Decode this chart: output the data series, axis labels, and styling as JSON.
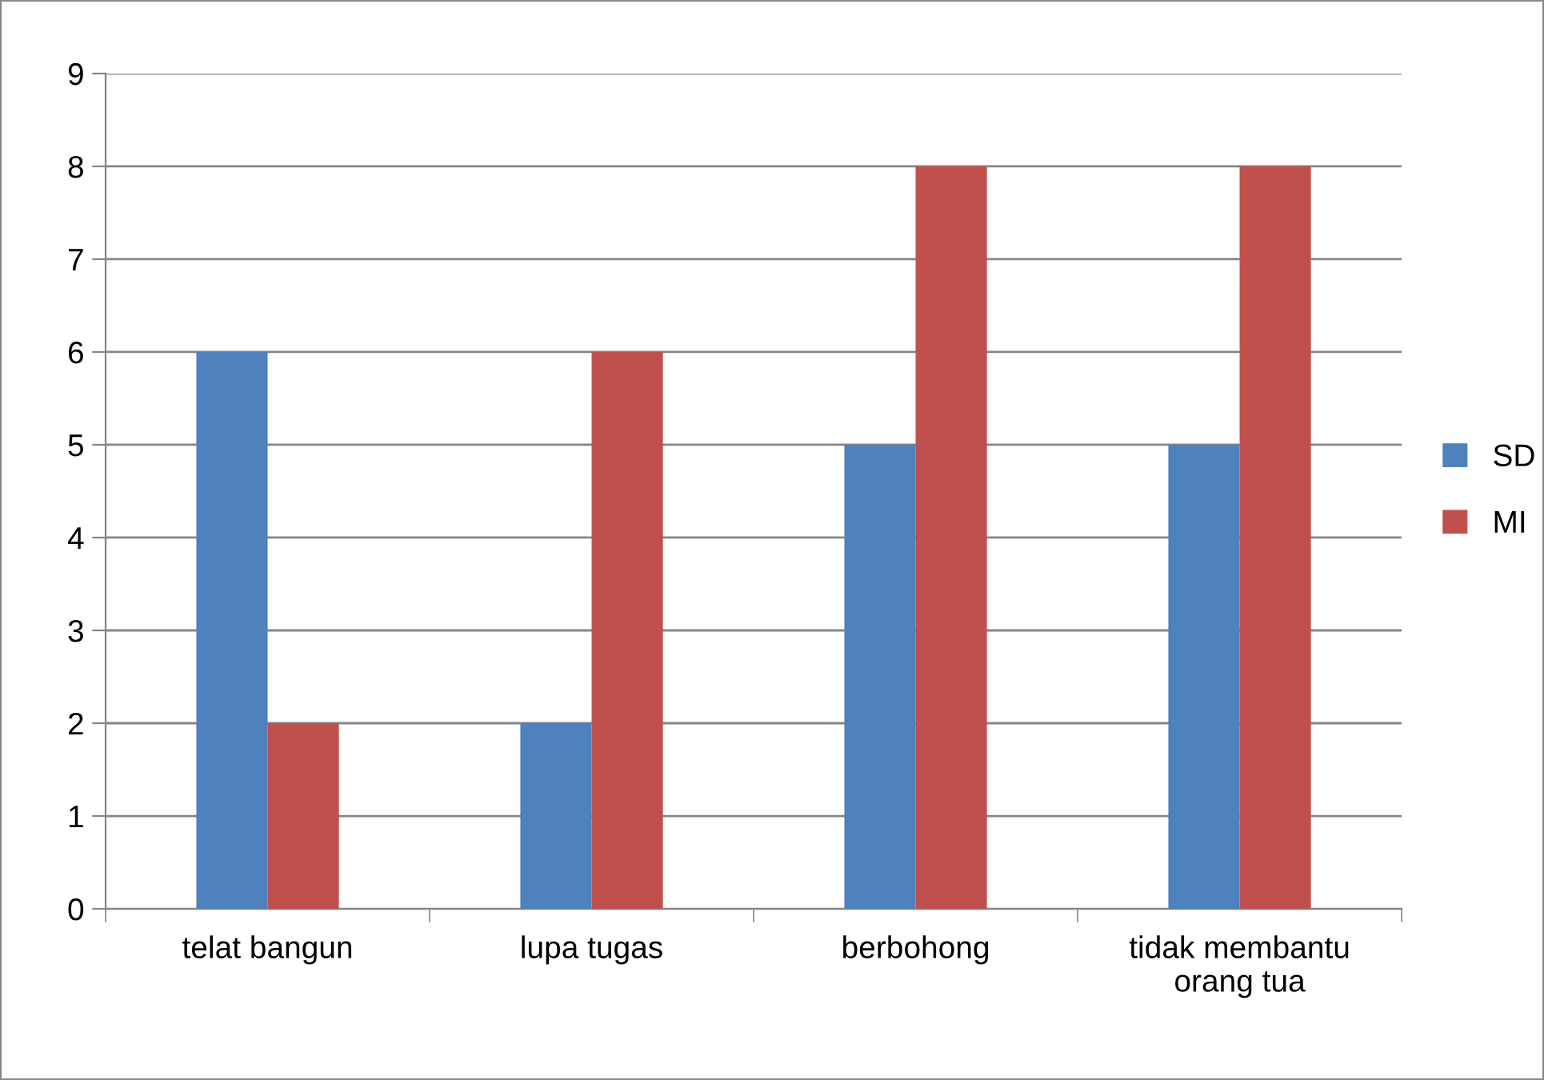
{
  "chart_data": {
    "type": "bar",
    "categories": [
      "telat bangun",
      "lupa tugas",
      "berbohong",
      "tidak membantu\norang tua"
    ],
    "series": [
      {
        "name": "SD",
        "color": "#4f81bd",
        "values": [
          6,
          2,
          5,
          5
        ]
      },
      {
        "name": "MI",
        "color": "#c0504d",
        "values": [
          2,
          6,
          8,
          8
        ]
      }
    ],
    "ylim": [
      0,
      9
    ],
    "yticks": [
      0,
      1,
      2,
      3,
      4,
      5,
      6,
      7,
      8,
      9
    ],
    "grid": "y",
    "legend": "right"
  }
}
